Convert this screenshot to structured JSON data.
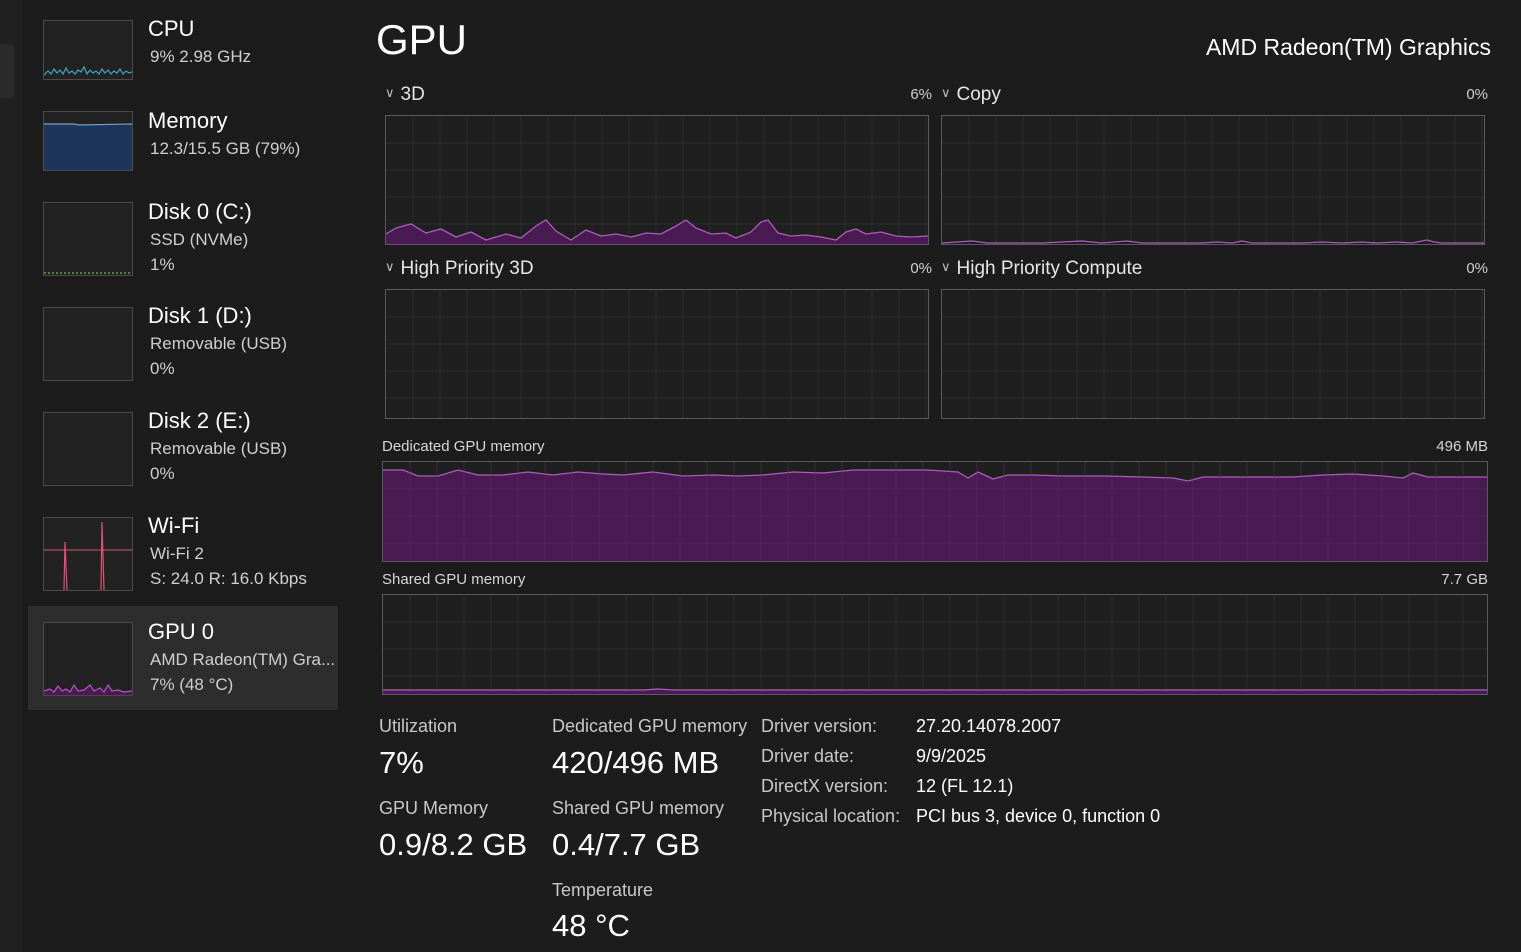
{
  "sidebar": {
    "items": [
      {
        "title": "CPU",
        "line1": "9%  2.98 GHz",
        "line2": ""
      },
      {
        "title": "Memory",
        "line1": "12.3/15.5 GB (79%)",
        "line2": ""
      },
      {
        "title": "Disk 0 (C:)",
        "line1": "SSD (NVMe)",
        "line2": "1%"
      },
      {
        "title": "Disk 1 (D:)",
        "line1": "Removable (USB)",
        "line2": "0%"
      },
      {
        "title": "Disk 2 (E:)",
        "line1": "Removable (USB)",
        "line2": "0%"
      },
      {
        "title": "Wi-Fi",
        "line1": "Wi-Fi 2",
        "line2": "S: 24.0  R: 16.0 Kbps"
      },
      {
        "title": "GPU 0",
        "line1": "AMD Radeon(TM) Gra...",
        "line2": "7%  (48 °C)"
      }
    ]
  },
  "header": {
    "title": "GPU",
    "device": "AMD Radeon(TM) Graphics"
  },
  "engines": [
    {
      "label": "3D",
      "percent": "6%"
    },
    {
      "label": "Copy",
      "percent": "0%"
    },
    {
      "label": "High Priority 3D",
      "percent": "0%"
    },
    {
      "label": "High Priority Compute",
      "percent": "0%"
    }
  ],
  "memory_graphs": {
    "dedicated": {
      "label": "Dedicated GPU memory",
      "max": "496 MB"
    },
    "shared": {
      "label": "Shared GPU memory",
      "max": "7.7 GB"
    }
  },
  "stats": {
    "utilization": {
      "label": "Utilization",
      "value": "7%"
    },
    "gpu_memory": {
      "label": "GPU Memory",
      "value": "0.9/8.2 GB"
    },
    "dedicated": {
      "label": "Dedicated GPU memory",
      "value": "420/496 MB"
    },
    "shared": {
      "label": "Shared GPU memory",
      "value": "0.4/7.7 GB"
    },
    "temperature": {
      "label": "Temperature",
      "value": "48 °C"
    }
  },
  "info": {
    "driver_version": {
      "key": "Driver version:",
      "value": "27.20.14078.2007"
    },
    "driver_date": {
      "key": "Driver date:",
      "value": "9/9/2025"
    },
    "directx": {
      "key": "DirectX version:",
      "value": "12 (FL 12.1)"
    },
    "location": {
      "key": "Physical location:",
      "value": "PCI bus 3, device 0, function 0"
    }
  },
  "colors": {
    "background": "#1c1c1c",
    "gpu_accent": "#b257c4",
    "gpu_fill": "#4a1a52",
    "cpu_accent": "#3aa6c9",
    "memory_fill": "#1d3559",
    "wifi_accent": "#e0507a",
    "disk_accent": "#79b24a"
  },
  "icons": {
    "collapse": "chevron-down-icon"
  }
}
